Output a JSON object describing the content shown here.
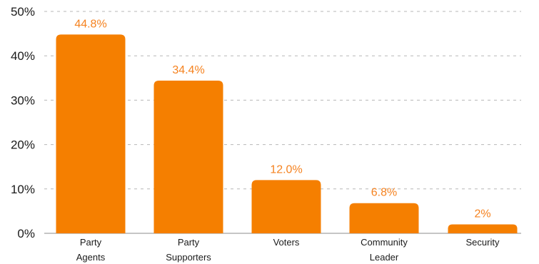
{
  "chart_data": {
    "type": "bar",
    "categories": [
      [
        "Party",
        "Agents"
      ],
      [
        "Party",
        "Supporters"
      ],
      [
        "Voters"
      ],
      [
        "Community",
        "Leader"
      ],
      [
        "Security"
      ]
    ],
    "values": [
      44.8,
      34.4,
      12.0,
      6.8,
      2
    ],
    "value_labels": [
      "44.8%",
      "34.4%",
      "12.0%",
      "6.8%",
      "2%"
    ],
    "y_ticks": [
      0,
      10,
      20,
      30,
      40,
      50
    ],
    "y_tick_labels": [
      "0%",
      "10%",
      "20%",
      "30%",
      "40%",
      "50%"
    ],
    "ylim": [
      0,
      50
    ],
    "title": "",
    "xlabel": "",
    "ylabel": "",
    "grid": true,
    "legend": "none",
    "colors": {
      "bar": "#F57F00",
      "value_label": "#F5821F"
    }
  }
}
